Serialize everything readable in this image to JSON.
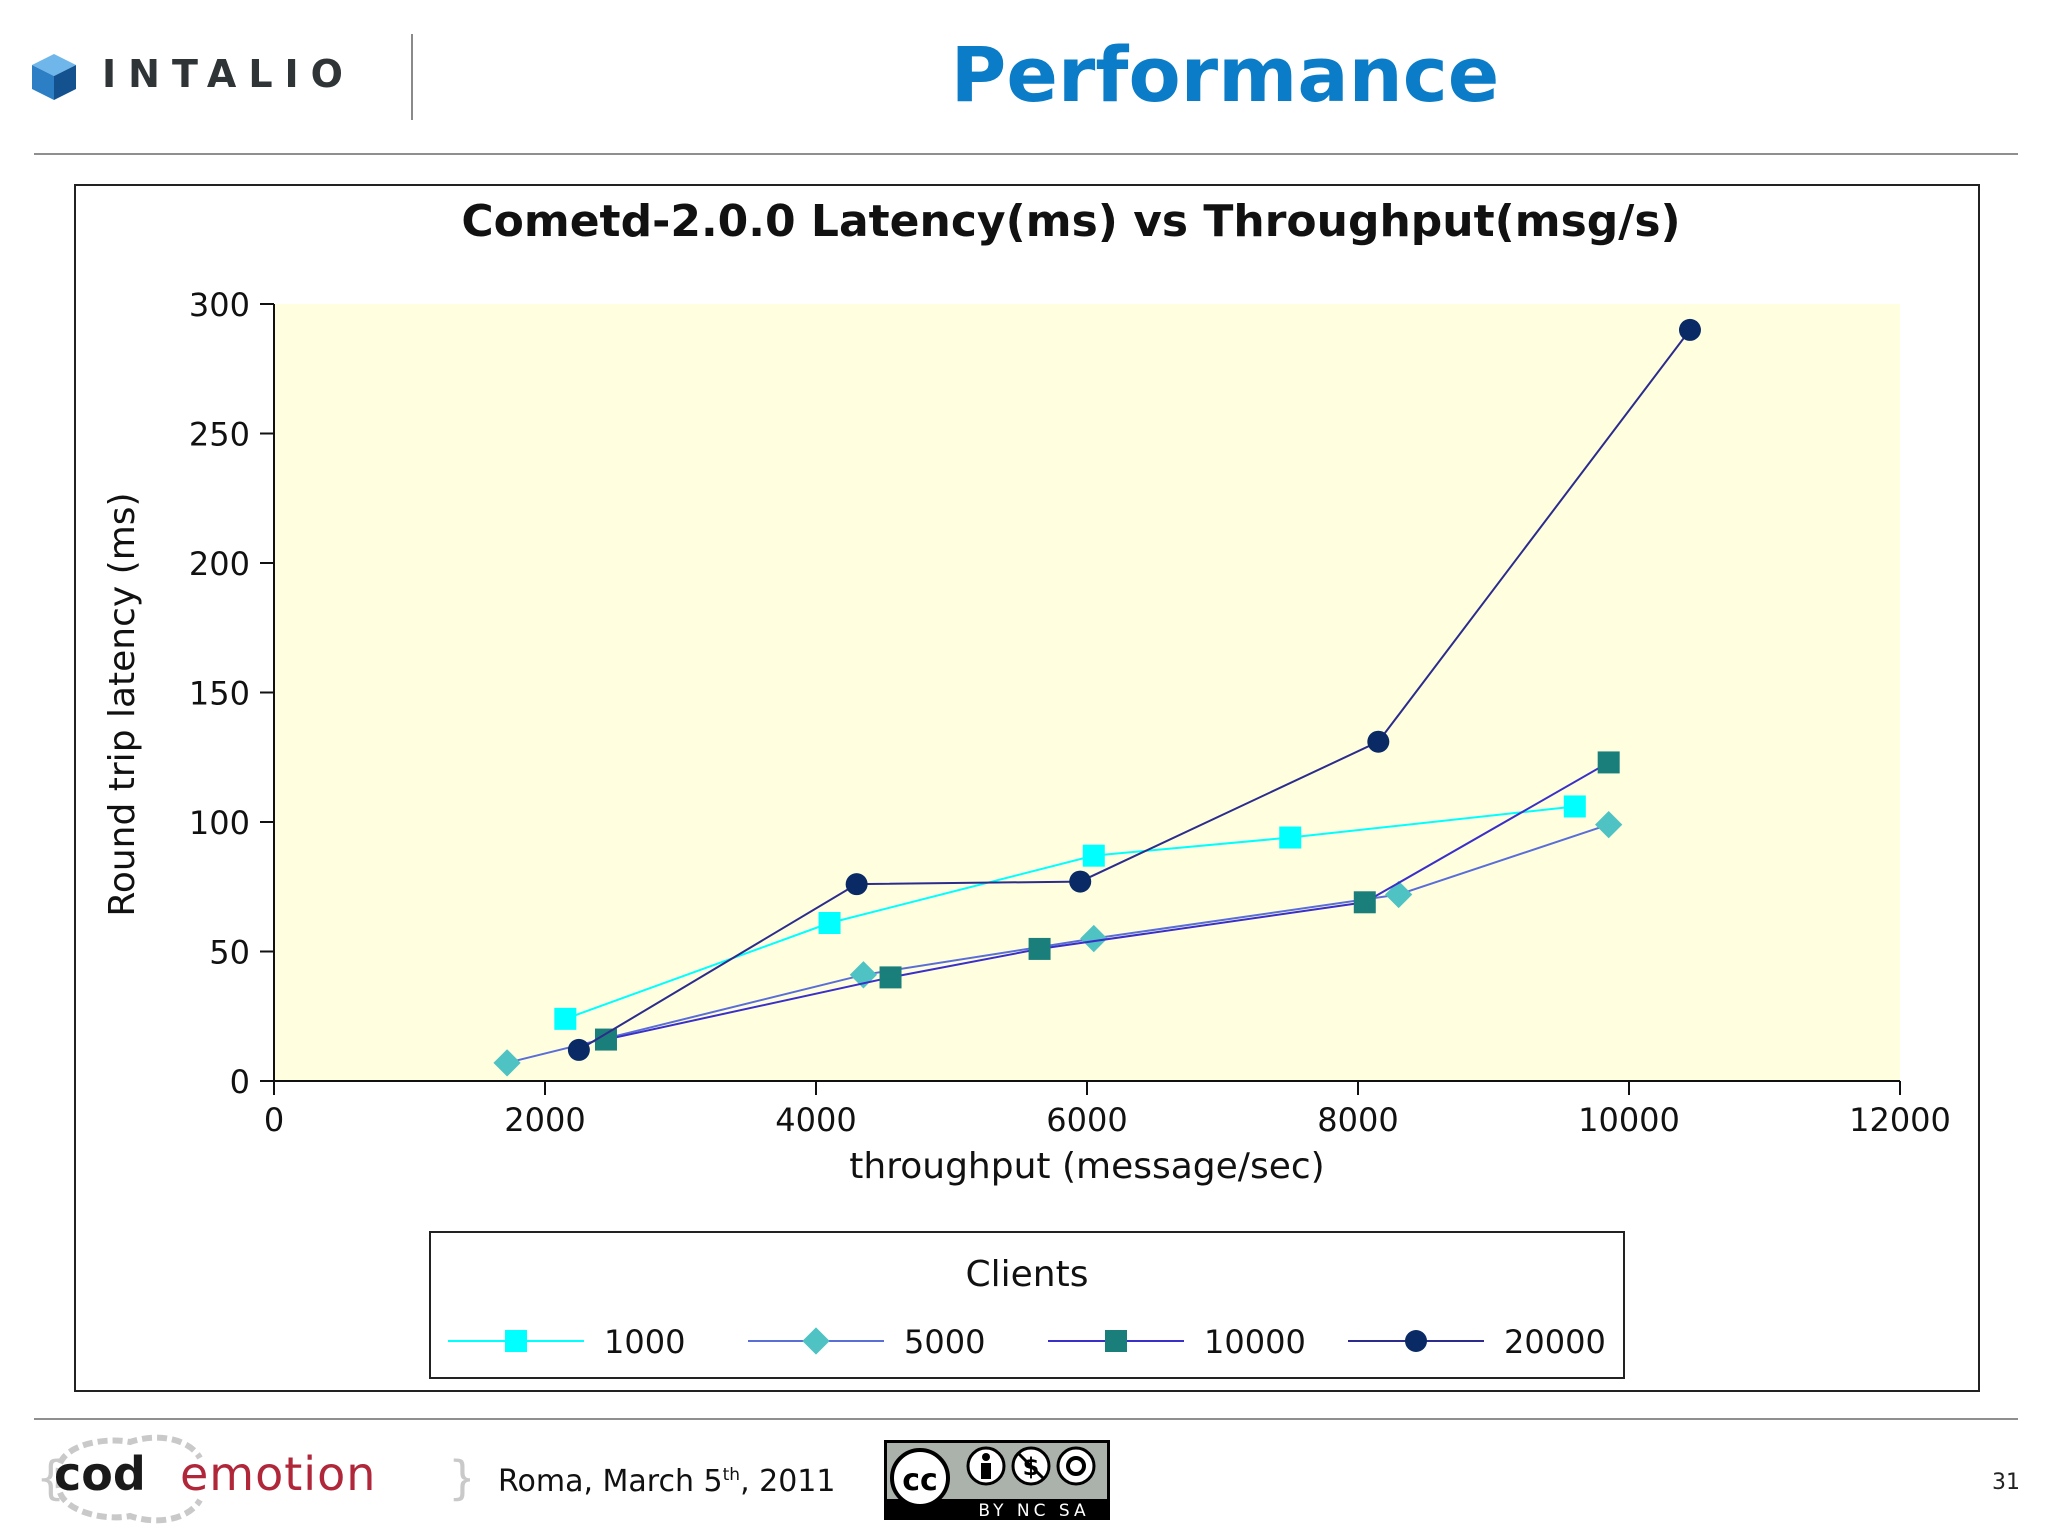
{
  "header": {
    "logo_text": "INTALIO",
    "title": "Performance"
  },
  "chart_data": {
    "type": "line",
    "title": "Cometd-2.0.0 Latency(ms) vs Throughput(msg/s)",
    "xlabel": "throughput (message/sec)",
    "ylabel": "Round trip latency (ms)",
    "xlim": [
      0,
      12000
    ],
    "ylim": [
      0,
      300
    ],
    "x_ticks": [
      "0",
      "2000",
      "4000",
      "6000",
      "8000",
      "10000",
      "12000"
    ],
    "y_ticks": [
      "0",
      "50",
      "100",
      "150",
      "200",
      "250",
      "300"
    ],
    "plot_background": "#ffffe0",
    "legend": {
      "title": "Clients",
      "placement": "bottom"
    },
    "series": [
      {
        "name": "1000",
        "color": "#00ffff",
        "marker": "square",
        "x": [
          2150,
          4100,
          6050,
          7500,
          9600
        ],
        "y": [
          24,
          61,
          87,
          94,
          106
        ]
      },
      {
        "name": "5000",
        "color": "#4fc3c3",
        "line_color": "#5a6ed8",
        "marker": "diamond",
        "x": [
          1720,
          4350,
          6050,
          8300,
          9850
        ],
        "y": [
          7,
          41,
          55,
          72,
          99
        ]
      },
      {
        "name": "10000",
        "color": "#1a7f7a",
        "line_color": "#3a2fc8",
        "marker": "square",
        "x": [
          2450,
          4550,
          5650,
          8050,
          9850
        ],
        "y": [
          16,
          40,
          51,
          69,
          123
        ]
      },
      {
        "name": "20000",
        "color": "#0a2a66",
        "line_color": "#2c2c8c",
        "marker": "circle",
        "x": [
          2250,
          4300,
          5950,
          8150,
          10450
        ],
        "y": [
          12,
          76,
          77,
          131,
          290
        ]
      }
    ]
  },
  "footer": {
    "brand_left": "cod",
    "brand_right": "emotion",
    "date_prefix": "Roma, March 5",
    "date_sup": "th",
    "date_suffix": ", 2011",
    "license_label": "BY NC SA",
    "page_number": "31"
  }
}
